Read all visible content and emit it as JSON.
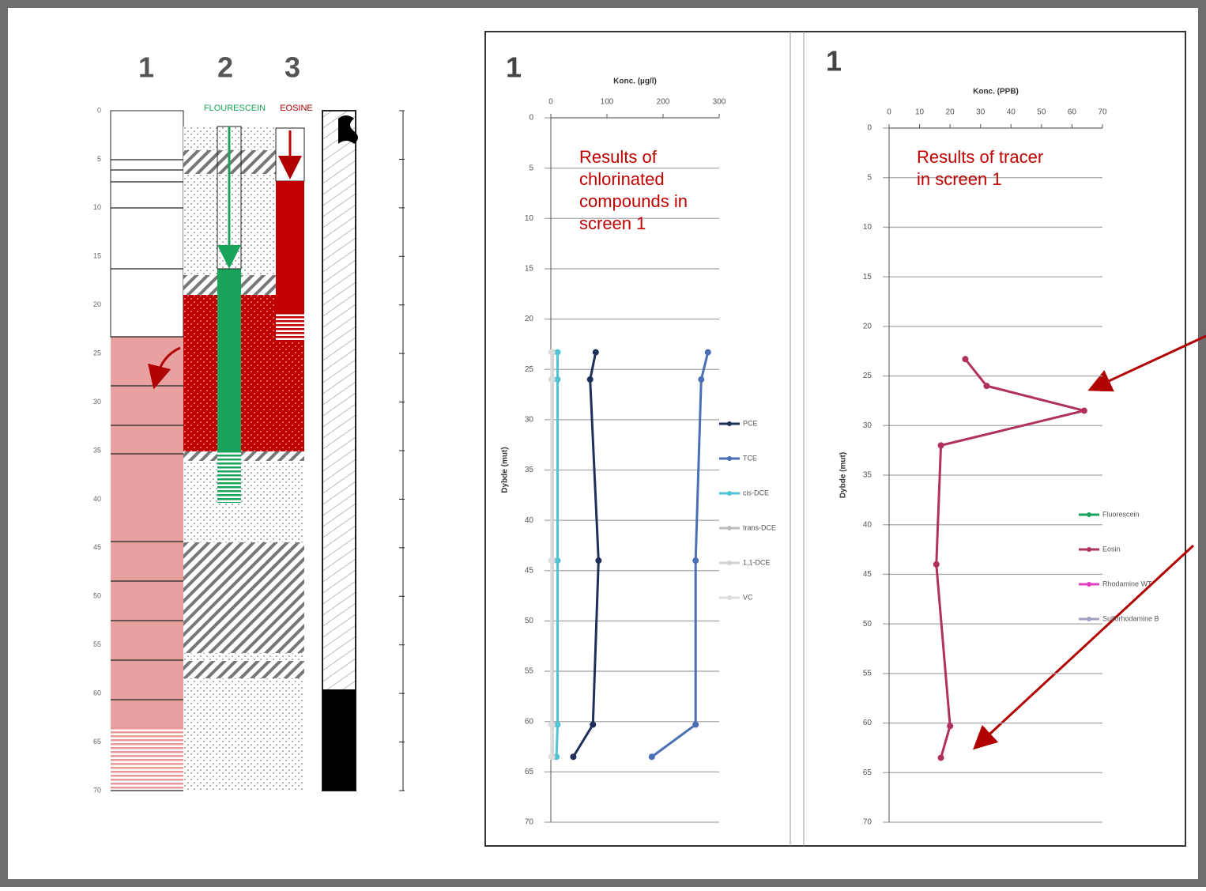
{
  "log": {
    "columns": [
      "1",
      "2",
      "3"
    ],
    "tracers": [
      "FLOURESCEIN",
      "EOSINE"
    ],
    "depth_ticks": [
      0,
      5,
      10,
      15,
      20,
      25,
      30,
      35,
      40,
      45,
      50,
      55,
      60,
      65,
      70
    ]
  },
  "chart_data": [
    {
      "type": "line",
      "panel": "1",
      "title": "Konc. (µg/l)",
      "y_label": "Dybde (mut)",
      "annotation": [
        "Results of",
        "chlorinated",
        "compounds in",
        "screen 1"
      ],
      "xlim": [
        0,
        300
      ],
      "xticks": [
        0,
        100,
        200,
        300
      ],
      "ylim": [
        0,
        70
      ],
      "yticks": [
        0,
        5,
        10,
        15,
        20,
        25,
        30,
        35,
        40,
        45,
        50,
        55,
        60,
        65,
        70
      ],
      "y_inverted": true,
      "grid": true,
      "depths": [
        23.3,
        26,
        44,
        60.3,
        63.5
      ],
      "series": [
        {
          "name": "PCE",
          "color": "#1f2f5a",
          "values": [
            80,
            70,
            85,
            75,
            40
          ]
        },
        {
          "name": "TCE",
          "color": "#4a6fb5",
          "values": [
            280,
            268,
            258,
            258,
            180
          ]
        },
        {
          "name": "cis-DCE",
          "color": "#4fc3d6",
          "values": [
            12,
            12,
            12,
            12,
            10
          ]
        },
        {
          "name": "trans-DCE",
          "color": "#bdbdbd",
          "values": [
            3,
            3,
            3,
            3,
            3
          ]
        },
        {
          "name": "1,1-DCE",
          "color": "#d2d2d2",
          "values": [
            2,
            2,
            2,
            2,
            2
          ]
        },
        {
          "name": "VC",
          "color": "#dcdcdc",
          "values": [
            1,
            1,
            1,
            1,
            1
          ]
        }
      ]
    },
    {
      "type": "line",
      "panel": "1",
      "title": "Konc. (PPB)",
      "y_label": "Dybde (mut)",
      "annotation": [
        "Results of tracer",
        "in screen 1"
      ],
      "xlim": [
        0,
        70
      ],
      "xticks": [
        0,
        10,
        20,
        30,
        40,
        50,
        60,
        70
      ],
      "ylim": [
        0,
        70
      ],
      "yticks": [
        0,
        5,
        10,
        15,
        20,
        25,
        30,
        35,
        40,
        45,
        50,
        55,
        60,
        65,
        70
      ],
      "y_inverted": true,
      "grid": true,
      "depths": [
        23.3,
        26,
        28.5,
        32,
        44,
        60.3,
        63.5
      ],
      "series": [
        {
          "name": "Fluorescein",
          "color": "#1aa35a",
          "values": [
            null,
            null,
            null,
            null,
            null,
            null,
            null
          ]
        },
        {
          "name": "Eosin",
          "color": "#b03060",
          "values": [
            25,
            32,
            64,
            17,
            15.5,
            20,
            17
          ]
        },
        {
          "name": "Rhodamine WT",
          "color": "#e040c0",
          "values": [
            null,
            null,
            null,
            null,
            null,
            null,
            null
          ]
        },
        {
          "name": "Sulforhodamine B",
          "color": "#a0a0c0",
          "values": [
            null,
            null,
            null,
            null,
            null,
            null,
            null
          ]
        }
      ]
    }
  ]
}
